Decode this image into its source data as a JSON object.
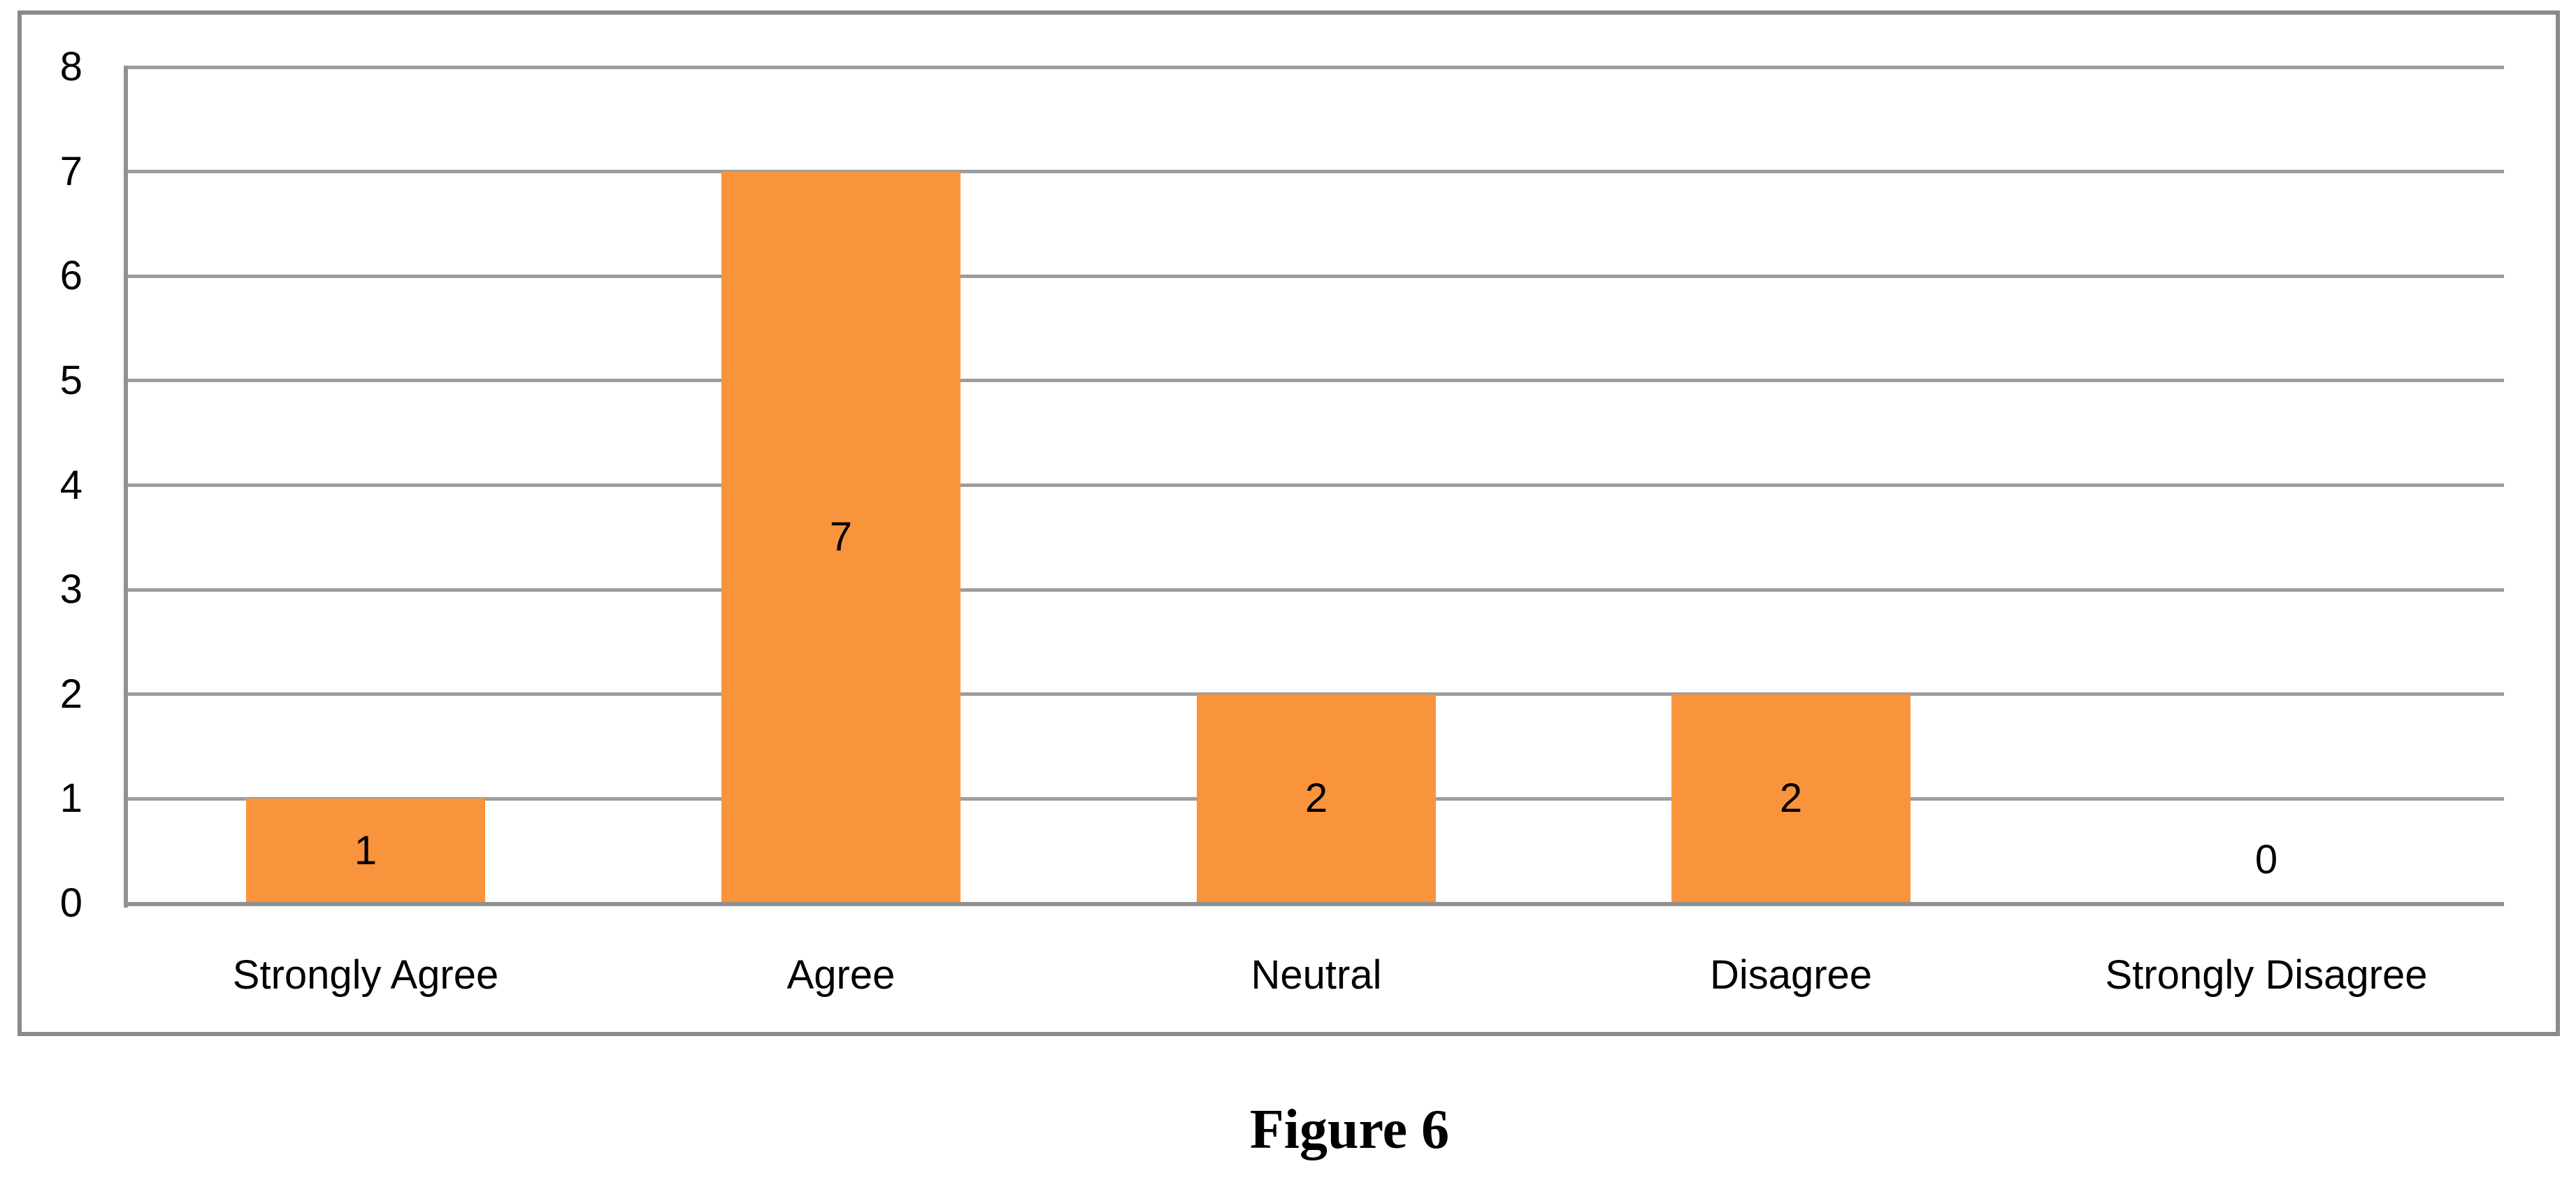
{
  "figure": {
    "caption": "Figure 6"
  },
  "chart_data": {
    "type": "bar",
    "categories": [
      "Strongly Agree",
      "Agree",
      "Neutral",
      "Disagree",
      "Strongly Disagree"
    ],
    "values": [
      1,
      7,
      2,
      2,
      0
    ],
    "data_labels": [
      "1",
      "7",
      "2",
      "2",
      "0"
    ],
    "title": "",
    "xlabel": "",
    "ylabel": "",
    "ylim": [
      0,
      8
    ],
    "yticks": [
      0,
      1,
      2,
      3,
      4,
      5,
      6,
      7,
      8
    ],
    "grid": "horizontal-major",
    "legend": "none",
    "data_label_position": "inside-center",
    "bar_color": "#F9943C",
    "gridline_color": "#9d9d9d",
    "axis_line_color": "#919191",
    "frame_border_color": "#8a8a8a",
    "text_color": "#000000",
    "background_color": "#FFFFFF"
  }
}
